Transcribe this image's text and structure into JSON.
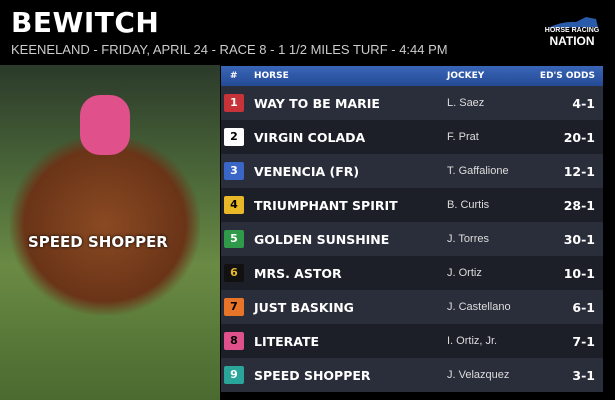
{
  "header": {
    "title": "BEWITCH",
    "subtitle": "KEENELAND - FRIDAY, APRIL 24 - RACE 8 - 1 1/2 MILES TURF - 4:44 PM"
  },
  "logo": {
    "line1": "HORSE RACING",
    "line2": "NATION"
  },
  "photo": {
    "label": "SPEED SHOPPER"
  },
  "table": {
    "columns": [
      "#",
      "HORSE",
      "JOCKEY",
      "ED'S ODDS"
    ],
    "rows": [
      {
        "num": "1",
        "horse": "WAY TO BE MARIE",
        "jockey": "L. Saez",
        "odds": "4-1",
        "bg": "#c8333a",
        "fg": "#ffffff"
      },
      {
        "num": "2",
        "horse": "VIRGIN COLADA",
        "jockey": "F. Prat",
        "odds": "20-1",
        "bg": "#ffffff",
        "fg": "#000000"
      },
      {
        "num": "3",
        "horse": "VENENCIA (FR)",
        "jockey": "T. Gaffalione",
        "odds": "12-1",
        "bg": "#3a66c8",
        "fg": "#ffffff"
      },
      {
        "num": "4",
        "horse": "TRIUMPHANT SPIRIT",
        "jockey": "B. Curtis",
        "odds": "28-1",
        "bg": "#e8b828",
        "fg": "#000000"
      },
      {
        "num": "5",
        "horse": "GOLDEN SUNSHINE",
        "jockey": "J. Torres",
        "odds": "30-1",
        "bg": "#2e9a4a",
        "fg": "#ffffff"
      },
      {
        "num": "6",
        "horse": "MRS. ASTOR",
        "jockey": "J. Ortiz",
        "odds": "10-1",
        "bg": "#111111",
        "fg": "#e8b828"
      },
      {
        "num": "7",
        "horse": "JUST BASKING",
        "jockey": "J. Castellano",
        "odds": "6-1",
        "bg": "#e8742a",
        "fg": "#000000"
      },
      {
        "num": "8",
        "horse": "LITERATE",
        "jockey": "I. Ortiz, Jr.",
        "odds": "7-1",
        "bg": "#e0508a",
        "fg": "#000000"
      },
      {
        "num": "9",
        "horse": "SPEED SHOPPER",
        "jockey": "J. Velazquez",
        "odds": "3-1",
        "bg": "#2aa59a",
        "fg": "#ffffff"
      }
    ]
  }
}
